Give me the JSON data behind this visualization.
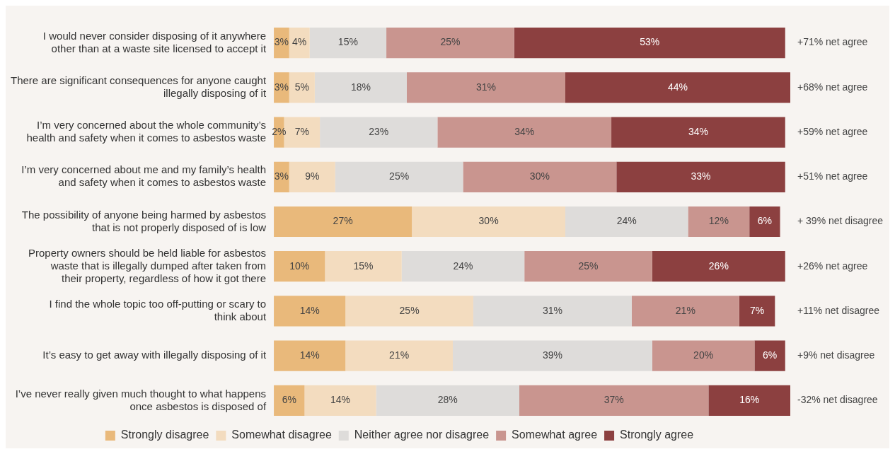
{
  "chart_data": {
    "type": "bar",
    "orientation": "horizontal",
    "stacked": true,
    "xlim": [
      0,
      101
    ],
    "tick_labels": "y",
    "grid": false,
    "legend": "bottom",
    "categories": [
      "I would never consider disposing of it anywhere other than at a waste site licensed to accept it",
      "There are significant consequences for anyone caught illegally disposing of it",
      "I’m very concerned about the whole community’s health and safety when it comes to asbestos waste",
      "I’m very concerned about me and my family’s health and safety when it comes to asbestos waste",
      "The possibility of anyone being harmed by asbestos that is not properly disposed of is low",
      "Property owners should be held liable for asbestos waste that is illegally dumped after taken from their property, regardless of how it got there",
      "I find the whole topic too off-putting or scary to think about",
      "It’s easy to get away with illegally disposing of it",
      "I’ve never really given much thought to what happens once asbestos is disposed of"
    ],
    "series": [
      {
        "name": "Strongly disagree",
        "color": "#e9b97b",
        "values": [
          3,
          3,
          2,
          3,
          27,
          10,
          14,
          14,
          6
        ],
        "value_labels": [
          "3%",
          "3%",
          "2%",
          "3%",
          "27%",
          "10%",
          "14%",
          "14%",
          "6%"
        ]
      },
      {
        "name": "Somewhat disagree",
        "color": "#f3dcbf",
        "values": [
          4,
          5,
          7,
          9,
          30,
          15,
          25,
          21,
          14
        ],
        "value_labels": [
          "4%",
          "5%",
          "7%",
          "9%",
          "30%",
          "15%",
          "25%",
          "21%",
          "14%"
        ]
      },
      {
        "name": "Neither agree nor disagree",
        "color": "#dedcda",
        "values": [
          15,
          18,
          23,
          25,
          24,
          24,
          31,
          39,
          28
        ],
        "value_labels": [
          "15%",
          "18%",
          "23%",
          "25%",
          "24%",
          "24%",
          "31%",
          "39%",
          "28%"
        ]
      },
      {
        "name": "Somewhat agree",
        "color": "#c9958f",
        "values": [
          25,
          31,
          34,
          30,
          12,
          25,
          21,
          20,
          37
        ],
        "value_labels": [
          "25%",
          "31%",
          "34%",
          "30%",
          "12%",
          "25%",
          "21%",
          "20%",
          "37%"
        ]
      },
      {
        "name": "Strongly agree",
        "color": "#8c4040",
        "values": [
          53,
          44,
          34,
          33,
          6,
          26,
          7,
          6,
          16
        ],
        "value_labels": [
          "53%",
          "44%",
          "34%",
          "33%",
          "6%",
          "26%",
          "7%",
          "6%",
          "16%"
        ]
      }
    ],
    "annotations": [
      "+71% net agree",
      "+68% net agree",
      "+59% net agree",
      "+51% net agree",
      "+ 39% net disagree",
      "+26% net agree",
      "+11% net disagree",
      "+9% net disagree",
      "-32% net disagree"
    ]
  }
}
